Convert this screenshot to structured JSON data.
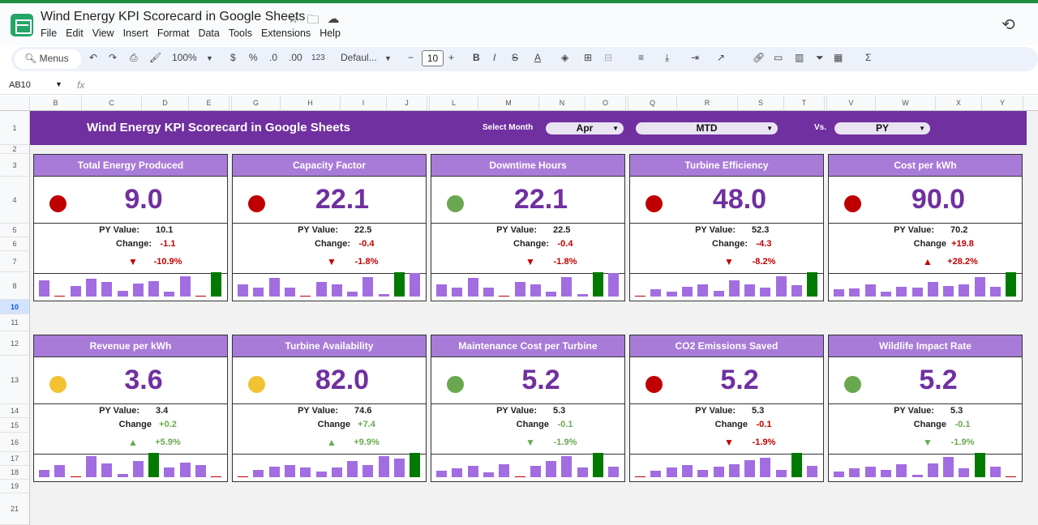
{
  "document": {
    "title": "Wind Energy KPI Scorecard in Google Sheets"
  },
  "menu": [
    "File",
    "Edit",
    "View",
    "Insert",
    "Format",
    "Data",
    "Tools",
    "Extensions",
    "Help"
  ],
  "toolbar": {
    "search": "Menus",
    "zoom": "100%",
    "currency": "$",
    "percent": "%",
    "dec_less": ".0",
    "dec_more": ".00",
    "num_format": "123",
    "font": "Defaul...",
    "font_size": "10"
  },
  "formula_bar": {
    "cell": "AB10",
    "fx": "fx"
  },
  "columns": [
    "B",
    "C",
    "D",
    "E",
    "",
    "G",
    "H",
    "I",
    "J",
    "",
    "L",
    "M",
    "N",
    "O",
    "",
    "Q",
    "R",
    "S",
    "T",
    "",
    "V",
    "W",
    "X",
    "Y"
  ],
  "rows": [
    "1",
    "2",
    "3",
    "4",
    "5",
    "6",
    "7",
    "8",
    "10",
    "11",
    "12",
    "13",
    "14",
    "15",
    "16",
    "17",
    "18",
    "19",
    "21"
  ],
  "selected_row": "10",
  "banner": {
    "title": "Wind Energy KPI Scorecard in Google Sheets",
    "select_month_label": "Select Month",
    "month": "Apr",
    "period": "MTD",
    "vs_label": "Vs.",
    "comparison": "PY"
  },
  "colors": {
    "accent": "#7030a0",
    "header": "#a87bd8",
    "red": "#c00000",
    "green": "#6aa84f",
    "amber": "#f1c232",
    "bar": "#a26de0",
    "bar_highlight": "#007a00",
    "down": "#c00000",
    "up": "#6aa84f"
  },
  "labels": {
    "py": "PY Value:"
  },
  "cards": [
    {
      "name": "Total Energy Produced",
      "value": "9.0",
      "status": "red",
      "py": "10.1",
      "change_label": "Change:",
      "change": "-1.1",
      "change_color": "red",
      "dir": "down",
      "arrow_color": "red",
      "pct": "-10.9%",
      "pct_color": "red",
      "bars": [
        21,
        2,
        14,
        23,
        19,
        7,
        17,
        20,
        6,
        27,
        2,
        32
      ]
    },
    {
      "name": "Capacity Factor",
      "value": "22.1",
      "status": "red",
      "py": "22.5",
      "change_label": "Change:",
      "change": "-0.4",
      "change_color": "red",
      "dir": "down",
      "arrow_color": "red",
      "pct": "-1.8%",
      "pct_color": "red",
      "bars": [
        16,
        11,
        24,
        11,
        2,
        19,
        16,
        6,
        25,
        3,
        31,
        30
      ]
    },
    {
      "name": "Downtime Hours",
      "value": "22.1",
      "status": "green",
      "py": "22.5",
      "change_label": "Change:",
      "change": "-0.4",
      "change_color": "red",
      "dir": "down",
      "arrow_color": "red",
      "pct": "-1.8%",
      "pct_color": "red",
      "bars": [
        16,
        11,
        24,
        11,
        2,
        19,
        16,
        6,
        25,
        3,
        31,
        30
      ]
    },
    {
      "name": "Turbine Efficiency",
      "value": "48.0",
      "status": "red",
      "py": "52.3",
      "change_label": "Change:",
      "change": "-4.3",
      "change_color": "red",
      "dir": "down",
      "arrow_color": "red",
      "pct": "-8.2%",
      "pct_color": "red",
      "bars": [
        2,
        9,
        6,
        12,
        16,
        7,
        21,
        16,
        11,
        26,
        14,
        31
      ]
    },
    {
      "name": "Cost per kWh",
      "value": "90.0",
      "status": "red",
      "py": "70.2",
      "change_label": "Change",
      "change": "+19.8",
      "change_color": "red",
      "dir": "up",
      "arrow_color": "red",
      "pct": "+28.2%",
      "pct_color": "red",
      "bars": [
        9,
        10,
        15,
        6,
        12,
        11,
        19,
        13,
        15,
        25,
        12,
        31
      ]
    },
    {
      "name": "Revenue per kWh",
      "value": "3.6",
      "status": "amber",
      "py": "3.4",
      "change_label": "Change",
      "change": "+0.2",
      "change_color": "green",
      "dir": "up",
      "arrow_color": "green",
      "pct": "+5.9%",
      "pct_color": "green",
      "bars": [
        9,
        16,
        2,
        27,
        18,
        4,
        21,
        31,
        12,
        19,
        15,
        0
      ]
    },
    {
      "name": "Turbine Availability",
      "value": "82.0",
      "status": "amber",
      "py": "74.6",
      "change_label": "Change",
      "change": "+7.4",
      "change_color": "green",
      "dir": "up",
      "arrow_color": "green",
      "pct": "+9.9%",
      "pct_color": "green",
      "bars": [
        2,
        9,
        13,
        16,
        12,
        7,
        12,
        21,
        15,
        27,
        24,
        31
      ]
    },
    {
      "name": "Maintenance Cost per Turbine",
      "value": "5.2",
      "status": "green",
      "py": "5.3",
      "change_label": "Change",
      "change": "-0.1",
      "change_color": "green",
      "dir": "down",
      "arrow_color": "green",
      "pct": "-1.9%",
      "pct_color": "green",
      "bars": [
        8,
        11,
        14,
        6,
        17,
        2,
        14,
        21,
        27,
        12,
        31,
        13
      ]
    },
    {
      "name": "CO2 Emissions Saved",
      "value": "5.2",
      "status": "red",
      "py": "5.3",
      "change_label": "Change",
      "change": "-0.1",
      "change_color": "red",
      "dir": "down",
      "arrow_color": "red",
      "pct": "-1.9%",
      "pct_color": "red",
      "bars": [
        2,
        8,
        12,
        16,
        9,
        13,
        17,
        22,
        25,
        9,
        31,
        14
      ]
    },
    {
      "name": "Wildlife Impact Rate",
      "value": "5.2",
      "status": "green",
      "py": "5.3",
      "change_label": "Change",
      "change": "-0.1",
      "change_color": "green",
      "dir": "down",
      "arrow_color": "green",
      "pct": "-1.9%",
      "pct_color": "green",
      "bars": [
        7,
        11,
        13,
        9,
        17,
        3,
        18,
        26,
        11,
        31,
        13,
        2
      ]
    }
  ]
}
